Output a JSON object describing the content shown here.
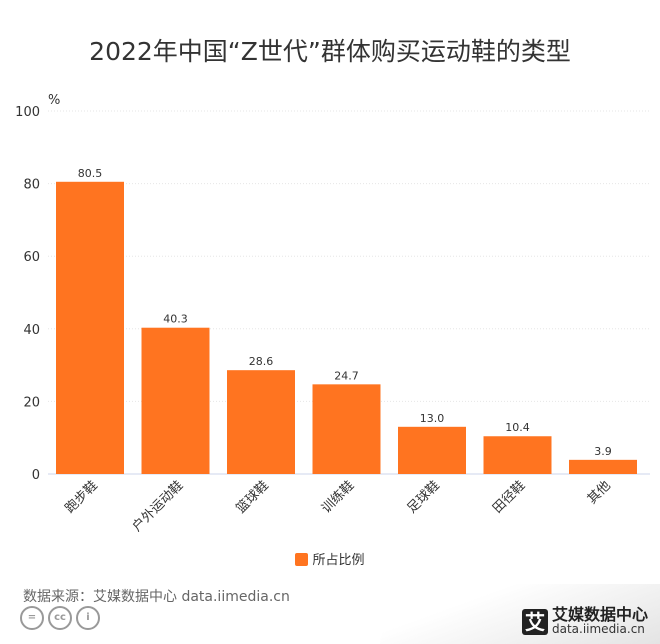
{
  "chart_data": {
    "type": "bar",
    "title": "2022年中国“Z世代”群体购买运动鞋的类型",
    "ylabel": "%",
    "ylim": [
      0,
      100
    ],
    "yticks": [
      0,
      20,
      40,
      60,
      80,
      100
    ],
    "categories": [
      "跑步鞋",
      "户外运动鞋",
      "篮球鞋",
      "训练鞋",
      "足球鞋",
      "田径鞋",
      "其他"
    ],
    "series": [
      {
        "name": "所占比例",
        "values": [
          80.5,
          40.3,
          28.6,
          24.7,
          13.0,
          10.4,
          3.9
        ],
        "color": "#ff7420"
      }
    ],
    "grid": true,
    "legend": "bottom"
  },
  "footer": {
    "source": "数据来源：艾媒数据中心 data.iimedia.cn",
    "logo_name": "艾媒数据中心",
    "logo_url": "data.iimedia.cn",
    "logo_mark": "艾"
  }
}
